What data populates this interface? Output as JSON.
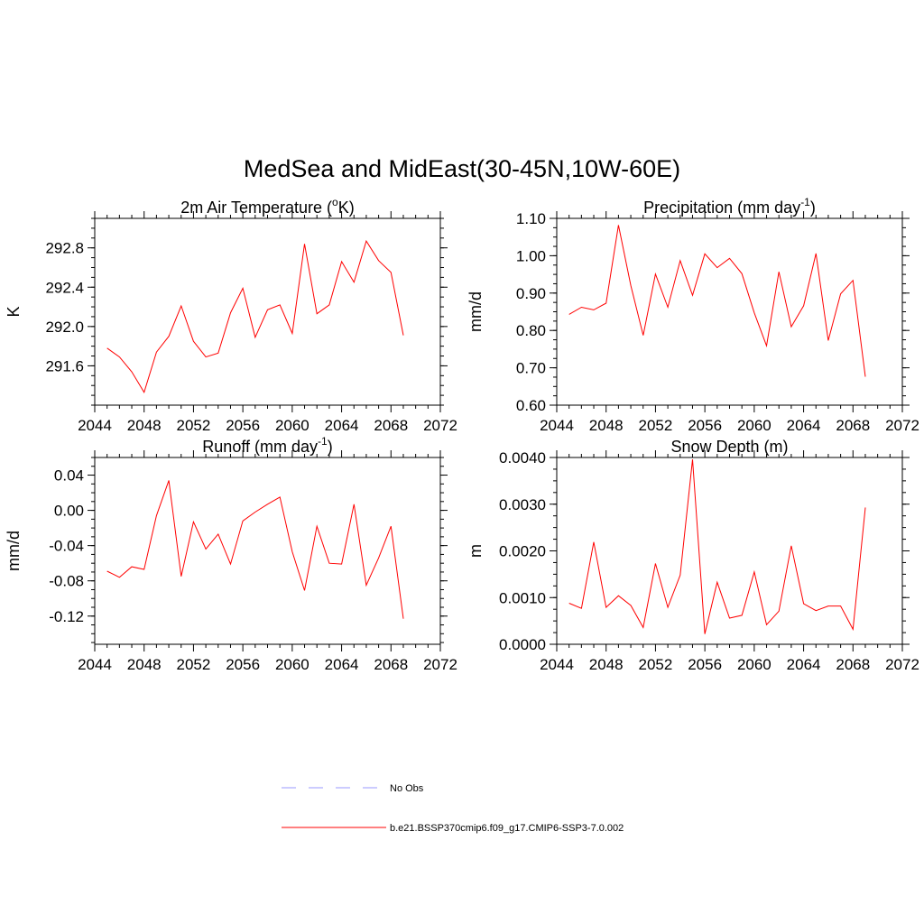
{
  "title": "MedSea and MidEast(30-45N,10W-60E)",
  "colors": {
    "model": "#ff0000",
    "obs": "#9999ff"
  },
  "legend": [
    {
      "label": "No Obs",
      "style": "dashed",
      "color": "#9999ff"
    },
    {
      "label": "b.e21.BSSP370cmip6.f09_g17.CMIP6-SSP3-7.0.002",
      "style": "solid",
      "color": "#ff0000"
    }
  ],
  "chart_data": [
    {
      "type": "line",
      "title": "2m Air Temperature (",
      "title_sup": "o",
      "title_tail": "K)",
      "ylabel": "K",
      "xlim": [
        2044,
        2072
      ],
      "xticks": [
        2044,
        2048,
        2052,
        2056,
        2060,
        2064,
        2068,
        2072
      ],
      "ylim": [
        291.2,
        293.1
      ],
      "yticks": [
        291.6,
        292.0,
        292.4,
        292.8
      ],
      "ytick_labels": [
        "291.6",
        "292.0",
        "292.4",
        "292.8"
      ],
      "yminor": 0.1,
      "series": [
        {
          "x": [
            2045,
            2046,
            2047,
            2048,
            2049,
            2050,
            2051,
            2052,
            2053,
            2054,
            2055,
            2056,
            2057,
            2058,
            2059,
            2060,
            2061,
            2062,
            2063,
            2064,
            2065,
            2066,
            2067,
            2068,
            2069
          ],
          "values": [
            291.78,
            291.69,
            291.54,
            291.33,
            291.74,
            291.9,
            292.21,
            291.85,
            291.69,
            291.73,
            292.14,
            292.39,
            291.89,
            292.17,
            292.22,
            291.93,
            292.84,
            292.13,
            292.22,
            292.66,
            292.45,
            292.87,
            292.67,
            292.55,
            291.91
          ]
        }
      ]
    },
    {
      "type": "line",
      "title": "Precipitation (mm day",
      "title_sup": "-1",
      "title_tail": ")",
      "ylabel": "mm/d",
      "xlim": [
        2044,
        2072
      ],
      "xticks": [
        2044,
        2048,
        2052,
        2056,
        2060,
        2064,
        2068,
        2072
      ],
      "ylim": [
        0.6,
        1.1
      ],
      "yticks": [
        0.6,
        0.7,
        0.8,
        0.9,
        1.0,
        1.1
      ],
      "ytick_labels": [
        "0.60",
        "0.70",
        "0.80",
        "0.90",
        "1.00",
        "1.10"
      ],
      "yminor": 0.025,
      "series": [
        {
          "x": [
            2045,
            2046,
            2047,
            2048,
            2049,
            2050,
            2051,
            2052,
            2053,
            2054,
            2055,
            2056,
            2057,
            2058,
            2059,
            2060,
            2061,
            2062,
            2063,
            2064,
            2065,
            2066,
            2067,
            2068,
            2069
          ],
          "values": [
            0.843,
            0.862,
            0.855,
            0.873,
            1.082,
            0.92,
            0.787,
            0.951,
            0.862,
            0.987,
            0.894,
            1.005,
            0.968,
            0.993,
            0.952,
            0.847,
            0.759,
            0.957,
            0.81,
            0.866,
            1.006,
            0.773,
            0.898,
            0.934,
            0.676
          ]
        }
      ]
    },
    {
      "type": "line",
      "title": "Runoff (mm day",
      "title_sup": "-1",
      "title_tail": ")",
      "ylabel": "mm/d",
      "xlim": [
        2044,
        2072
      ],
      "xticks": [
        2044,
        2048,
        2052,
        2056,
        2060,
        2064,
        2068,
        2072
      ],
      "ylim": [
        -0.152,
        0.06
      ],
      "yticks": [
        -0.12,
        -0.08,
        -0.04,
        0.0,
        0.04
      ],
      "ytick_labels": [
        "-0.12",
        "-0.08",
        "-0.04",
        "0.00",
        "0.04"
      ],
      "yminor": 0.01,
      "series": [
        {
          "x": [
            2045,
            2046,
            2047,
            2048,
            2049,
            2050,
            2051,
            2052,
            2053,
            2054,
            2055,
            2056,
            2057,
            2058,
            2059,
            2060,
            2061,
            2062,
            2063,
            2064,
            2065,
            2066,
            2067,
            2068,
            2069
          ],
          "values": [
            -0.069,
            -0.076,
            -0.064,
            -0.067,
            -0.006,
            0.034,
            -0.075,
            -0.013,
            -0.044,
            -0.027,
            -0.061,
            -0.012,
            -0.002,
            0.007,
            0.015,
            -0.047,
            -0.091,
            -0.018,
            -0.06,
            -0.061,
            0.007,
            -0.085,
            -0.054,
            -0.018,
            -0.123
          ]
        }
      ]
    },
    {
      "type": "line",
      "title": "Snow Depth (m)",
      "title_sup": "",
      "title_tail": "",
      "ylabel": "m",
      "xlim": [
        2044,
        2072
      ],
      "xticks": [
        2044,
        2048,
        2052,
        2056,
        2060,
        2064,
        2068,
        2072
      ],
      "ylim": [
        0.0,
        0.004
      ],
      "yticks": [
        0.0,
        0.001,
        0.002,
        0.003,
        0.004
      ],
      "ytick_labels": [
        "0.0000",
        "0.0010",
        "0.0020",
        "0.0030",
        "0.0040"
      ],
      "yminor": 0.00025,
      "series": [
        {
          "x": [
            2045,
            2046,
            2047,
            2048,
            2049,
            2050,
            2051,
            2052,
            2053,
            2054,
            2055,
            2056,
            2057,
            2058,
            2059,
            2060,
            2061,
            2062,
            2063,
            2064,
            2065,
            2066,
            2067,
            2068,
            2069
          ],
          "values": [
            0.00088,
            0.00077,
            0.00219,
            0.00079,
            0.00104,
            0.00083,
            0.00036,
            0.00173,
            0.00079,
            0.00148,
            0.00396,
            0.00022,
            0.00133,
            0.00056,
            0.00062,
            0.00155,
            0.00042,
            0.00071,
            0.00211,
            0.00087,
            0.00072,
            0.00082,
            0.00082,
            0.00032,
            0.00293
          ]
        }
      ]
    }
  ]
}
